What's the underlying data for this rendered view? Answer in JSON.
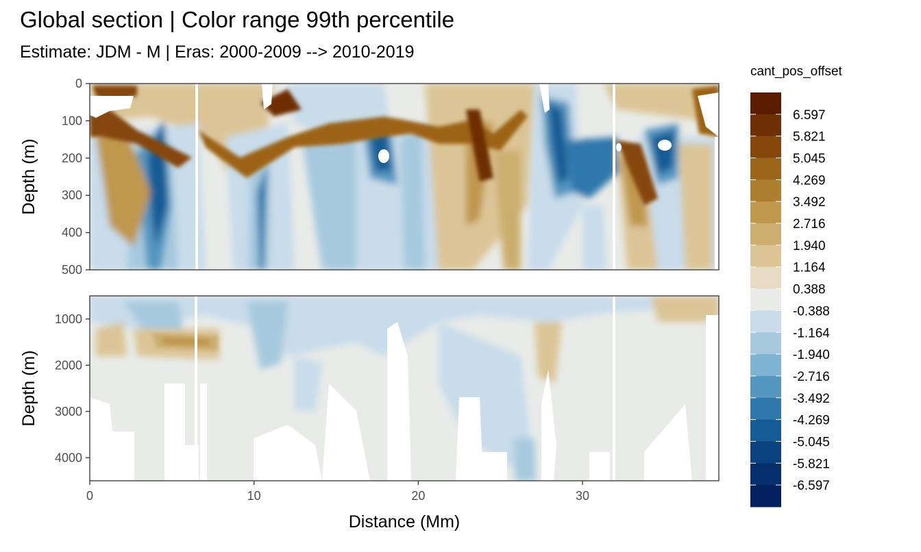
{
  "chart_data": {
    "type": "heatmap",
    "title": "Global section | Color range 99th percentile",
    "subtitle": "Estimate: JDM - M | Eras: 2000-2009 --> 2010-2019",
    "xlabel": "Distance (Mm)",
    "ylabel": "Depth (m)",
    "x_ticks": [
      "0",
      "10",
      "20",
      "30"
    ],
    "x_range": [
      0,
      38.3
    ],
    "grid": true,
    "panels": [
      {
        "name": "upper",
        "ylim": [
          0,
          500
        ],
        "y_ticks": [
          "0",
          "100",
          "200",
          "300",
          "400",
          "500"
        ],
        "y_tick_values": [
          0,
          100,
          200,
          300,
          400,
          500
        ]
      },
      {
        "name": "lower",
        "ylim": [
          500,
          4500
        ],
        "y_ticks": [
          "1000",
          "2000",
          "3000",
          "4000"
        ],
        "y_tick_values": [
          1000,
          2000,
          3000,
          4000
        ]
      }
    ],
    "legend": {
      "title": "cant_pos_offset",
      "placement": "right",
      "labels": [
        "6.597",
        "5.821",
        "5.045",
        "4.269",
        "3.492",
        "2.716",
        "1.940",
        "1.164",
        "0.388",
        "-0.388",
        "-1.164",
        "-1.940",
        "-2.716",
        "-3.492",
        "-4.269",
        "-5.045",
        "-5.821",
        "-6.597"
      ],
      "colors": [
        "#5a1b00",
        "#6e2f04",
        "#85470a",
        "#9c6419",
        "#ae7f2e",
        "#bf974d",
        "#ccae70",
        "#dbc596",
        "#e8dbc4",
        "#e8ebe8",
        "#c8dcea",
        "#a6c9de",
        "#7fb3d2",
        "#5596c0",
        "#2f78ac",
        "#155b95",
        "#0a4280",
        "#062f6d",
        "#04205e"
      ]
    }
  }
}
